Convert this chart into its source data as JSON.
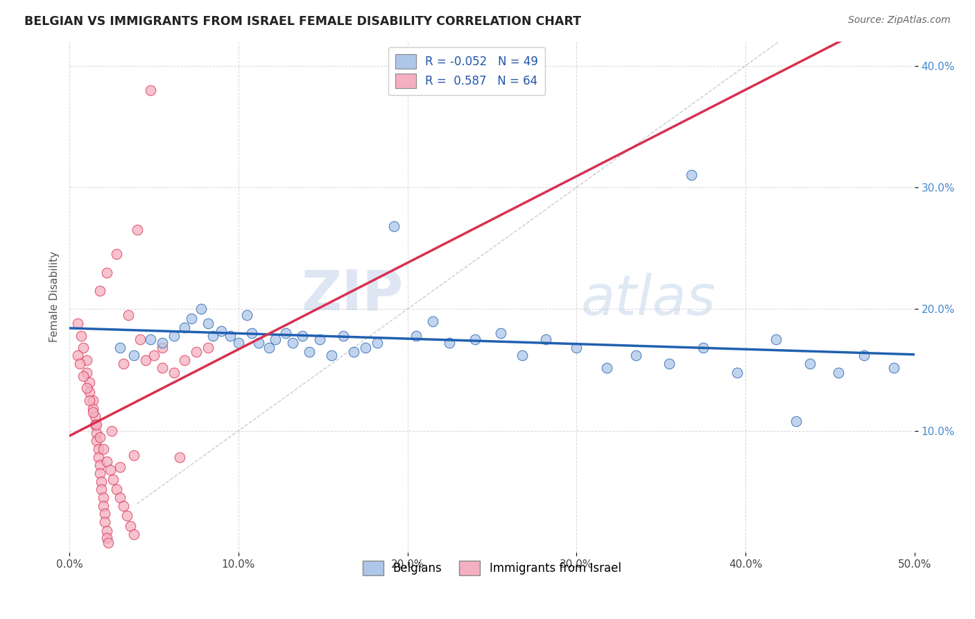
{
  "title": "BELGIAN VS IMMIGRANTS FROM ISRAEL FEMALE DISABILITY CORRELATION CHART",
  "source": "Source: ZipAtlas.com",
  "ylabel": "Female Disability",
  "xlim": [
    0.0,
    0.5
  ],
  "ylim": [
    0.0,
    0.42
  ],
  "xticks": [
    0.0,
    0.1,
    0.2,
    0.3,
    0.4,
    0.5
  ],
  "xticklabels": [
    "0.0%",
    "10.0%",
    "20.0%",
    "30.0%",
    "40.0%",
    "50.0%"
  ],
  "yticks": [
    0.1,
    0.2,
    0.3,
    0.4
  ],
  "yticklabels": [
    "10.0%",
    "20.0%",
    "30.0%",
    "40.0%"
  ],
  "belgian_R": -0.052,
  "belgian_N": 49,
  "israel_R": 0.587,
  "israel_N": 64,
  "belgian_color": "#aec6e8",
  "israel_color": "#f4afc0",
  "belgian_line_color": "#2060b0",
  "israel_line_color": "#d83050",
  "watermark_zip": "ZIP",
  "watermark_atlas": "atlas",
  "belgian_points": [
    [
      0.03,
      0.168
    ],
    [
      0.038,
      0.162
    ],
    [
      0.048,
      0.175
    ],
    [
      0.055,
      0.172
    ],
    [
      0.062,
      0.178
    ],
    [
      0.068,
      0.185
    ],
    [
      0.072,
      0.192
    ],
    [
      0.078,
      0.2
    ],
    [
      0.082,
      0.188
    ],
    [
      0.085,
      0.178
    ],
    [
      0.09,
      0.182
    ],
    [
      0.095,
      0.178
    ],
    [
      0.1,
      0.172
    ],
    [
      0.105,
      0.195
    ],
    [
      0.108,
      0.18
    ],
    [
      0.112,
      0.172
    ],
    [
      0.118,
      0.168
    ],
    [
      0.122,
      0.175
    ],
    [
      0.128,
      0.18
    ],
    [
      0.132,
      0.172
    ],
    [
      0.138,
      0.178
    ],
    [
      0.142,
      0.165
    ],
    [
      0.148,
      0.175
    ],
    [
      0.155,
      0.162
    ],
    [
      0.162,
      0.178
    ],
    [
      0.168,
      0.165
    ],
    [
      0.175,
      0.168
    ],
    [
      0.182,
      0.172
    ],
    [
      0.192,
      0.268
    ],
    [
      0.205,
      0.178
    ],
    [
      0.215,
      0.19
    ],
    [
      0.225,
      0.172
    ],
    [
      0.24,
      0.175
    ],
    [
      0.255,
      0.18
    ],
    [
      0.268,
      0.162
    ],
    [
      0.282,
      0.175
    ],
    [
      0.3,
      0.168
    ],
    [
      0.318,
      0.152
    ],
    [
      0.335,
      0.162
    ],
    [
      0.355,
      0.155
    ],
    [
      0.375,
      0.168
    ],
    [
      0.395,
      0.148
    ],
    [
      0.418,
      0.175
    ],
    [
      0.438,
      0.155
    ],
    [
      0.455,
      0.148
    ],
    [
      0.47,
      0.162
    ],
    [
      0.488,
      0.152
    ],
    [
      0.43,
      0.108
    ],
    [
      0.368,
      0.31
    ]
  ],
  "israel_points": [
    [
      0.005,
      0.188
    ],
    [
      0.007,
      0.178
    ],
    [
      0.008,
      0.168
    ],
    [
      0.01,
      0.158
    ],
    [
      0.01,
      0.148
    ],
    [
      0.012,
      0.14
    ],
    [
      0.012,
      0.132
    ],
    [
      0.014,
      0.125
    ],
    [
      0.014,
      0.118
    ],
    [
      0.015,
      0.112
    ],
    [
      0.015,
      0.105
    ],
    [
      0.016,
      0.098
    ],
    [
      0.016,
      0.092
    ],
    [
      0.017,
      0.085
    ],
    [
      0.017,
      0.078
    ],
    [
      0.018,
      0.072
    ],
    [
      0.018,
      0.065
    ],
    [
      0.019,
      0.058
    ],
    [
      0.019,
      0.052
    ],
    [
      0.02,
      0.045
    ],
    [
      0.02,
      0.038
    ],
    [
      0.021,
      0.032
    ],
    [
      0.021,
      0.025
    ],
    [
      0.022,
      0.018
    ],
    [
      0.022,
      0.012
    ],
    [
      0.023,
      0.008
    ],
    [
      0.005,
      0.162
    ],
    [
      0.006,
      0.155
    ],
    [
      0.008,
      0.145
    ],
    [
      0.01,
      0.135
    ],
    [
      0.012,
      0.125
    ],
    [
      0.014,
      0.115
    ],
    [
      0.016,
      0.105
    ],
    [
      0.018,
      0.095
    ],
    [
      0.02,
      0.085
    ],
    [
      0.022,
      0.075
    ],
    [
      0.024,
      0.068
    ],
    [
      0.026,
      0.06
    ],
    [
      0.028,
      0.052
    ],
    [
      0.03,
      0.045
    ],
    [
      0.032,
      0.038
    ],
    [
      0.034,
      0.03
    ],
    [
      0.036,
      0.022
    ],
    [
      0.038,
      0.015
    ],
    [
      0.04,
      0.265
    ],
    [
      0.028,
      0.245
    ],
    [
      0.022,
      0.23
    ],
    [
      0.018,
      0.215
    ],
    [
      0.048,
      0.38
    ],
    [
      0.035,
      0.195
    ],
    [
      0.042,
      0.175
    ],
    [
      0.05,
      0.162
    ],
    [
      0.055,
      0.152
    ],
    [
      0.062,
      0.148
    ],
    [
      0.068,
      0.158
    ],
    [
      0.075,
      0.165
    ],
    [
      0.082,
      0.168
    ],
    [
      0.03,
      0.07
    ],
    [
      0.038,
      0.08
    ],
    [
      0.025,
      0.1
    ],
    [
      0.032,
      0.155
    ],
    [
      0.045,
      0.158
    ],
    [
      0.055,
      0.168
    ],
    [
      0.065,
      0.078
    ]
  ]
}
